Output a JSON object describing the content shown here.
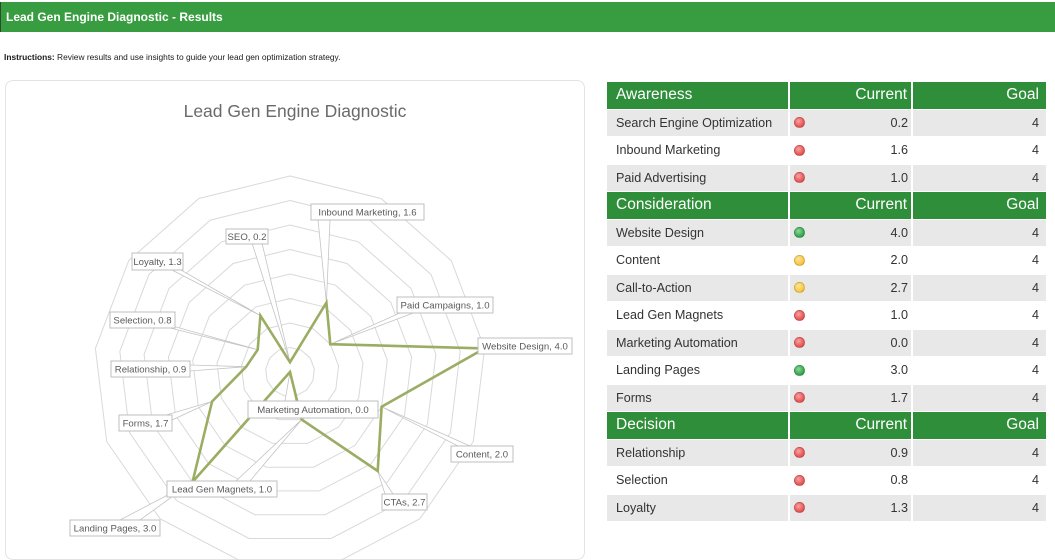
{
  "header": {
    "title": "Lead Gen Engine Diagnostic - Results"
  },
  "instructions": {
    "label": "Instructions:",
    "text": " Review results and use insights to guide your lead gen optimization strategy."
  },
  "status_colors": {
    "red": "#e85c5c",
    "yellow": "#f8c84a",
    "green": "#3eaa55"
  },
  "table": {
    "sections": [
      {
        "title": "Awareness",
        "current_header": "Current",
        "goal_header": "Goal",
        "rows": [
          {
            "label": "Search Engine Optimization",
            "status": "red",
            "current": "0.2",
            "goal": "4"
          },
          {
            "label": "Inbound Marketing",
            "status": "red",
            "current": "1.6",
            "goal": "4"
          },
          {
            "label": "Paid Advertising",
            "status": "red",
            "current": "1.0",
            "goal": "4"
          }
        ]
      },
      {
        "title": "Consideration",
        "current_header": "Current",
        "goal_header": "Goal",
        "rows": [
          {
            "label": "Website Design",
            "status": "green",
            "current": "4.0",
            "goal": "4"
          },
          {
            "label": "Content",
            "status": "yellow",
            "current": "2.0",
            "goal": "4"
          },
          {
            "label": "Call-to-Action",
            "status": "yellow",
            "current": "2.7",
            "goal": "4"
          },
          {
            "label": "Lead Gen Magnets",
            "status": "red",
            "current": "1.0",
            "goal": "4"
          },
          {
            "label": "Marketing Automation",
            "status": "red",
            "current": "0.0",
            "goal": "4"
          },
          {
            "label": "Landing Pages",
            "status": "green",
            "current": "3.0",
            "goal": "4"
          },
          {
            "label": "Forms",
            "status": "red",
            "current": "1.7",
            "goal": "4"
          }
        ]
      },
      {
        "title": "Decision",
        "current_header": "Current",
        "goal_header": "Goal",
        "rows": [
          {
            "label": "Relationship",
            "status": "red",
            "current": "0.9",
            "goal": "4"
          },
          {
            "label": "Selection",
            "status": "red",
            "current": "0.8",
            "goal": "4"
          },
          {
            "label": "Loyalty",
            "status": "red",
            "current": "1.3",
            "goal": "4"
          }
        ]
      }
    ]
  },
  "chart_data": {
    "type": "radar",
    "title": "Lead Gen Engine Diagnostic",
    "categories": [
      "SEO",
      "Inbound Marketing",
      "Paid Campaigns",
      "Website Design",
      "Content",
      "CTAs",
      "Lead Gen Magnets",
      "Marketing Automation",
      "Landing Pages",
      "Forms",
      "Relationship",
      "Selection",
      "Loyalty"
    ],
    "series": [
      {
        "name": "Current",
        "values": [
          0.2,
          1.6,
          1.0,
          4.0,
          2.0,
          2.7,
          1.0,
          0.0,
          3.0,
          1.7,
          0.9,
          0.8,
          1.3
        ],
        "color": "#9aad62"
      }
    ],
    "data_labels": [
      "SEO, 0.2",
      "Inbound Marketing, 1.6",
      "Paid Campaigns, 1.0",
      "Website Design, 4.0",
      "Content, 2.0",
      "CTAs, 2.7",
      "Lead Gen Magnets, 1.0",
      "Marketing Automation, 0.0",
      "Landing Pages, 3.0",
      "Forms, 1.7",
      "Relationship, 0.9",
      "Selection, 0.8",
      "Loyalty, 1.3"
    ],
    "rlim": [
      0,
      4
    ],
    "grid_step": 0.5,
    "grid": true,
    "legend": "none",
    "xlabel": "",
    "ylabel": ""
  }
}
